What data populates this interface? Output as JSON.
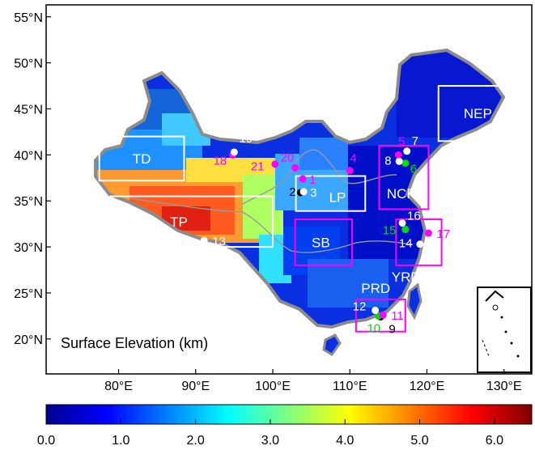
{
  "map": {
    "title": "Surface Elevation (km)",
    "lat_ticks": [
      "55°N",
      "50°N",
      "45°N",
      "40°N",
      "35°N",
      "30°N",
      "25°N",
      "20°N"
    ],
    "lon_ticks": [
      "80°E",
      "90°E",
      "100°E",
      "110°E",
      "120°E",
      "130°E"
    ]
  },
  "colorbar": {
    "ticks": [
      "0.0",
      "1.0",
      "2.0",
      "3.0",
      "4.0",
      "5.0",
      "6.0"
    ],
    "range_km": [
      0,
      6.5
    ],
    "colormap": "jet"
  },
  "regions": [
    {
      "id": "TD",
      "label": "TD",
      "color": "#ffffff"
    },
    {
      "id": "TP",
      "label": "TP",
      "color": "#ffffff"
    },
    {
      "id": "LP",
      "label": "LP",
      "color": "#ffffff"
    },
    {
      "id": "NCP",
      "label": "NCP",
      "color": "#ff00ff"
    },
    {
      "id": "SB",
      "label": "SB",
      "color": "#ff00ff"
    },
    {
      "id": "YRD",
      "label": "YRD",
      "color": "#ff00ff"
    },
    {
      "id": "PRD",
      "label": "PRD",
      "color": "#ff00ff"
    },
    {
      "id": "NEP",
      "label": "NEP",
      "color": "#ffffff"
    }
  ],
  "sites": [
    {
      "id": "1",
      "label": "1",
      "lon": 103.9,
      "lat": 37.4,
      "color": "#ff00ff"
    },
    {
      "id": "2",
      "label": "2",
      "lon": 103.6,
      "lat": 35.9,
      "color": "#000000"
    },
    {
      "id": "3",
      "label": "3",
      "lon": 104.0,
      "lat": 36.0,
      "color": "#ffffff"
    },
    {
      "id": "4",
      "label": "4",
      "lon": 110.0,
      "lat": 38.3,
      "color": "#ff00ff"
    },
    {
      "id": "5",
      "label": "5",
      "lon": 116.3,
      "lat": 40.0,
      "color": "#ff00ff"
    },
    {
      "id": "6",
      "label": "6",
      "lon": 117.2,
      "lat": 39.1,
      "color": "#00dd00"
    },
    {
      "id": "7",
      "label": "7",
      "lon": 117.4,
      "lat": 40.4,
      "color": "#ffffff"
    },
    {
      "id": "8",
      "label": "8",
      "lon": 116.4,
      "lat": 39.3,
      "color": "#ffffff"
    },
    {
      "id": "9",
      "label": "9",
      "lon": 114.0,
      "lat": 22.4,
      "color": "#000000"
    },
    {
      "id": "10",
      "label": "10",
      "lon": 113.7,
      "lat": 22.5,
      "color": "#00dd00"
    },
    {
      "id": "11",
      "label": "11",
      "lon": 114.3,
      "lat": 22.6,
      "color": "#ff00ff"
    },
    {
      "id": "12",
      "label": "12",
      "lon": 113.3,
      "lat": 23.1,
      "color": "#ffffff"
    },
    {
      "id": "13",
      "label": "13",
      "lon": 91.1,
      "lat": 30.7,
      "color": "#ffffff"
    },
    {
      "id": "14",
      "label": "14",
      "lon": 119.1,
      "lat": 30.3,
      "color": "#ffffff"
    },
    {
      "id": "15",
      "label": "15",
      "lon": 117.2,
      "lat": 31.9,
      "color": "#00dd00"
    },
    {
      "id": "16",
      "label": "16",
      "lon": 116.8,
      "lat": 32.6,
      "color": "#ffffff"
    },
    {
      "id": "17",
      "label": "17",
      "lon": 120.2,
      "lat": 31.5,
      "color": "#ff00ff"
    },
    {
      "id": "18",
      "label": "18",
      "lon": 94.8,
      "lat": 40.0,
      "color": "#ff00ff"
    },
    {
      "id": "19",
      "label": "19",
      "lon": 95.0,
      "lat": 40.3,
      "color": "#ffffff"
    },
    {
      "id": "20",
      "label": "20",
      "lon": 102.9,
      "lat": 38.6,
      "color": "#ff00ff"
    },
    {
      "id": "21",
      "label": "21",
      "lon": 100.3,
      "lat": 39.0,
      "color": "#ff00ff"
    }
  ]
}
